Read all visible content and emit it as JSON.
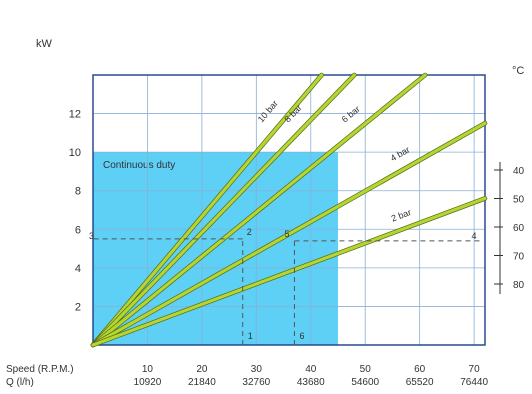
{
  "chart_data": {
    "type": "line",
    "ylabel": "kW",
    "xlabel_speed": "Speed (R.P.M.)",
    "xlabel_flow": "Q (l/h)",
    "x_ticks_speed": [
      "10",
      "20",
      "30",
      "40",
      "50",
      "60",
      "70"
    ],
    "x_ticks_flow": [
      "10920",
      "21840",
      "32760",
      "43680",
      "54600",
      "65520",
      "76440"
    ],
    "xlim": [
      0,
      72
    ],
    "ylim": [
      0,
      14
    ],
    "y_ticks": [
      "2",
      "4",
      "6",
      "8",
      "10",
      "12"
    ],
    "grid": true,
    "region": {
      "label": "Continuous duty",
      "x_max": 45,
      "y_max": 10,
      "color": "#5ecff5"
    },
    "series": [
      {
        "name": "10 bar",
        "x": [
          0,
          42
        ],
        "y": [
          0,
          14.0
        ]
      },
      {
        "name": "8 bar",
        "x": [
          0,
          48
        ],
        "y": [
          0,
          14.0
        ]
      },
      {
        "name": "6 bar",
        "x": [
          0,
          61
        ],
        "y": [
          0,
          14.0
        ]
      },
      {
        "name": "4 bar",
        "x": [
          0,
          72
        ],
        "y": [
          0,
          11.5
        ]
      },
      {
        "name": "2 bar",
        "x": [
          0,
          72
        ],
        "y": [
          0,
          7.6
        ]
      }
    ],
    "series_color": "#b5d632",
    "example_markers": {
      "points": [
        {
          "label": "1",
          "x": 27.5,
          "y": 0
        },
        {
          "label": "2",
          "x": 27.5,
          "y": 5.5
        },
        {
          "label": "3",
          "x": 0,
          "y": 5.5
        },
        {
          "label": "4",
          "x": 71,
          "y": 5.4
        },
        {
          "label": "5",
          "x": 37,
          "y": 5.4
        },
        {
          "label": "6",
          "x": 37,
          "y": 0
        }
      ],
      "dash_color": "#555555"
    },
    "temperature_axis": {
      "unit": "°C",
      "ticks": [
        "40",
        "50",
        "60",
        "70",
        "80"
      ]
    }
  },
  "ui": {
    "bg": "#ffffff",
    "grid_color": "#88b0d8",
    "plot_border": "#1a3f8a"
  }
}
